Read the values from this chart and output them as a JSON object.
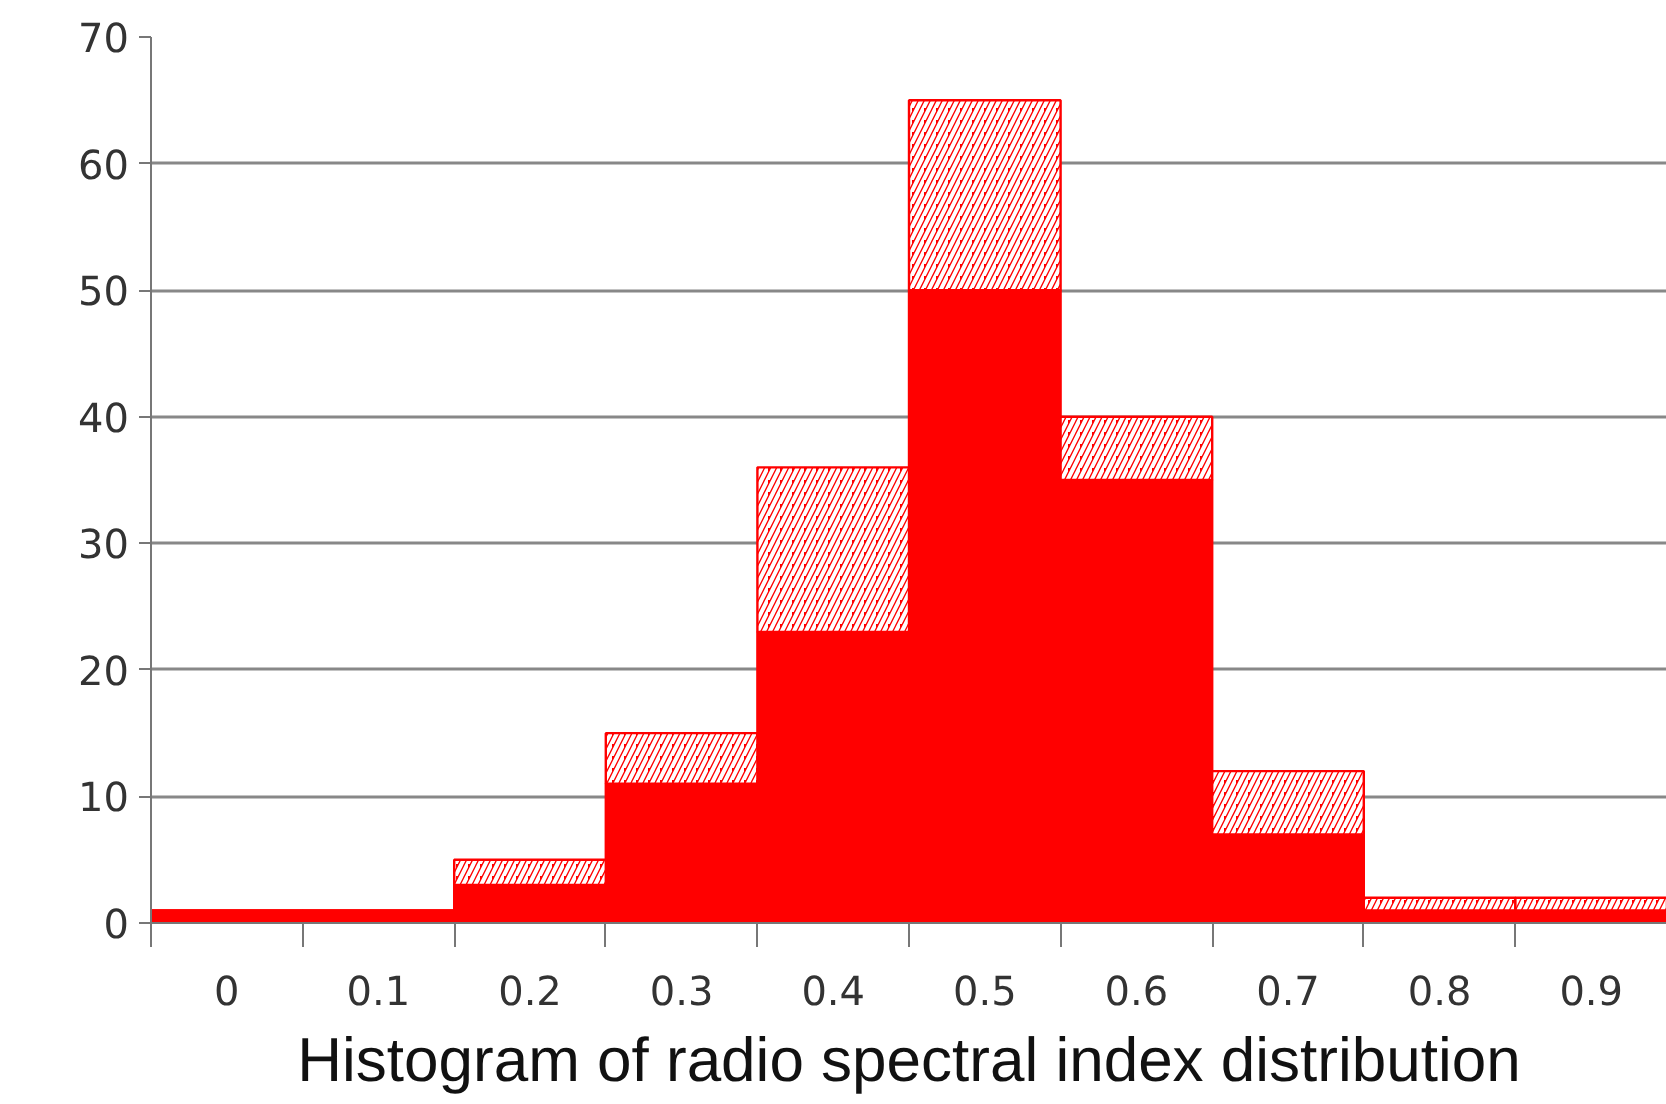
{
  "chart_data": {
    "type": "bar",
    "title": "Histogram of radio spectral index distribution",
    "categories": [
      "0",
      "0.1",
      "0.2",
      "0.3",
      "0.4",
      "0.5",
      "0.6",
      "0.7",
      "0.8",
      "0.9"
    ],
    "stacked": true,
    "series": [
      {
        "color": "#ff0000",
        "values": [
          1,
          1,
          3,
          11,
          23,
          50,
          35,
          7,
          1,
          1
        ]
      },
      {
        "color": "#ff0000",
        "values": [
          0,
          0,
          2,
          4,
          13,
          15,
          5,
          5,
          1,
          1
        ]
      }
    ],
    "ylim": [
      0,
      70
    ],
    "yticks": [
      0,
      10,
      20,
      30,
      40,
      50,
      60,
      70
    ],
    "grid": "y"
  }
}
